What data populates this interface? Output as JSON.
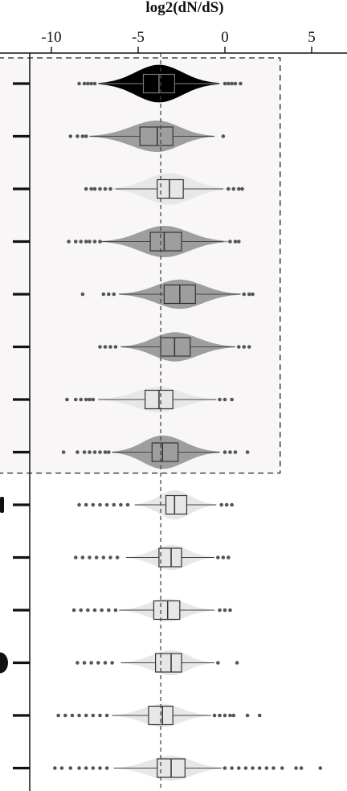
{
  "chart_data": {
    "type": "violin",
    "title": "log2(dN/dS)",
    "xlim": [
      -11.5,
      5.5
    ],
    "xticks": [
      -10,
      -5,
      0,
      5
    ],
    "xtick_labels": [
      "-10",
      "-5",
      "0",
      "5"
    ],
    "reference_line": -3.7,
    "highlight_group_rows": 8,
    "grid": false,
    "rows": [
      {
        "fill": "#000000",
        "median": -3.8,
        "q1": -4.7,
        "q3": -2.9,
        "whisker": [
          -7.3,
          -0.3
        ],
        "violin": [
          -7.3,
          -0.3
        ],
        "width": 0.9,
        "outliers": [
          -8.4,
          -8.1,
          -7.9,
          -7.7,
          -7.5,
          0.0,
          0.2,
          0.4,
          0.6,
          0.9
        ]
      },
      {
        "fill": "#999999",
        "median": -3.9,
        "q1": -4.9,
        "q3": -3.0,
        "whisker": [
          -7.8,
          -0.6
        ],
        "violin": [
          -7.8,
          -0.6
        ],
        "width": 0.75,
        "outliers": [
          -8.9,
          -8.5,
          -8.2,
          -8.0,
          -0.1
        ]
      },
      {
        "fill": "#e6e6e6",
        "median": -3.2,
        "q1": -3.9,
        "q3": -2.4,
        "whisker": [
          -6.3,
          -0.1
        ],
        "violin": [
          -6.6,
          0.2
        ],
        "width": 0.75,
        "outliers": [
          -8.0,
          -7.7,
          -7.5,
          -7.2,
          -6.9,
          -6.6,
          0.2,
          0.5,
          0.8,
          1.0
        ]
      },
      {
        "fill": "#999999",
        "median": -3.5,
        "q1": -4.3,
        "q3": -2.5,
        "whisker": [
          -7.1,
          -0.1
        ],
        "violin": [
          -7.1,
          0.2
        ],
        "width": 0.75,
        "outliers": [
          -9.0,
          -8.6,
          -8.3,
          -8.0,
          -7.8,
          -7.5,
          -7.2,
          0.3,
          0.6,
          0.8
        ]
      },
      {
        "fill": "#999999",
        "median": -2.6,
        "q1": -3.5,
        "q3": -1.7,
        "whisker": [
          -6.1,
          0.9
        ],
        "violin": [
          -6.1,
          0.9
        ],
        "width": 0.7,
        "outliers": [
          -8.2,
          -7.0,
          -6.7,
          -6.4,
          1.1,
          1.4,
          1.6
        ]
      },
      {
        "fill": "#999999",
        "median": -2.9,
        "q1": -3.7,
        "q3": -2.0,
        "whisker": [
          -6.0,
          0.6
        ],
        "violin": [
          -6.0,
          0.6
        ],
        "width": 0.7,
        "outliers": [
          -7.2,
          -6.9,
          -6.6,
          -6.3,
          0.8,
          1.1,
          1.4
        ]
      },
      {
        "fill": "#e6e6e6",
        "median": -3.8,
        "q1": -4.6,
        "q3": -3.0,
        "whisker": [
          -7.3,
          -0.5
        ],
        "violin": [
          -7.3,
          -0.5
        ],
        "width": 0.6,
        "outliers": [
          -9.1,
          -8.6,
          -8.3,
          -8.0,
          -7.8,
          -7.6,
          -0.3,
          0.0,
          0.4
        ]
      },
      {
        "fill": "#999999",
        "median": -3.6,
        "q1": -4.2,
        "q3": -2.7,
        "whisker": [
          -6.5,
          -0.3
        ],
        "violin": [
          -6.5,
          -0.3
        ],
        "width": 0.8,
        "outliers": [
          -9.3,
          -8.5,
          -8.1,
          -7.8,
          -7.5,
          -7.2,
          -6.9,
          -6.7,
          0.0,
          0.3,
          0.6,
          1.3
        ]
      },
      {
        "fill": "#e6e6e6",
        "median": -2.9,
        "q1": -3.4,
        "q3": -2.2,
        "whisker": [
          -5.2,
          -0.5
        ],
        "violin": [
          -5.2,
          -0.5
        ],
        "width": 0.7,
        "outliers": [
          -8.4,
          -8.0,
          -7.6,
          -7.2,
          -6.8,
          -6.4,
          -6.0,
          -5.6,
          -0.2,
          0.1,
          0.4
        ]
      },
      {
        "fill": "#e6e6e6",
        "median": -3.1,
        "q1": -3.8,
        "q3": -2.5,
        "whisker": [
          -5.7,
          -0.6
        ],
        "violin": [
          -5.7,
          -0.6
        ],
        "width": 0.6,
        "outliers": [
          -8.6,
          -8.2,
          -7.8,
          -7.4,
          -7.0,
          -6.6,
          -6.2,
          -0.4,
          -0.1,
          0.2
        ]
      },
      {
        "fill": "#e6e6e6",
        "median": -3.3,
        "q1": -4.1,
        "q3": -2.6,
        "whisker": [
          -6.1,
          -0.6
        ],
        "violin": [
          -6.1,
          -0.6
        ],
        "width": 0.55,
        "outliers": [
          -8.7,
          -8.3,
          -7.9,
          -7.5,
          -7.1,
          -6.7,
          -6.3,
          -0.3,
          0.0,
          0.3
        ]
      },
      {
        "fill": "#e6e6e6",
        "median": -3.1,
        "q1": -4.0,
        "q3": -2.5,
        "whisker": [
          -6.0,
          -0.6
        ],
        "violin": [
          -6.0,
          -0.6
        ],
        "width": 0.6,
        "outliers": [
          -8.5,
          -8.1,
          -7.7,
          -7.3,
          -6.9,
          -6.5,
          -0.4,
          0.7
        ]
      },
      {
        "fill": "#e6e6e6",
        "median": -3.6,
        "q1": -4.4,
        "q3": -3.0,
        "whisker": [
          -6.5,
          -0.8
        ],
        "violin": [
          -6.5,
          -0.8
        ],
        "width": 0.55,
        "outliers": [
          -9.6,
          -9.2,
          -8.8,
          -8.4,
          -8.0,
          -7.6,
          -7.2,
          -6.8,
          -0.6,
          -0.3,
          0.0,
          0.3,
          0.5,
          1.3,
          2.0
        ]
      },
      {
        "fill": "#e6e6e6",
        "median": -3.1,
        "q1": -3.9,
        "q3": -2.3,
        "whisker": [
          -6.4,
          -0.2
        ],
        "violin": [
          -6.4,
          0.0
        ],
        "width": 0.6,
        "outliers": [
          -9.8,
          -9.4,
          -8.9,
          -8.4,
          -8.0,
          -7.6,
          -7.2,
          -6.8,
          0.0,
          0.4,
          0.8,
          1.2,
          1.6,
          2.0,
          2.4,
          2.8,
          3.3,
          4.1,
          4.4,
          5.5
        ]
      }
    ]
  }
}
